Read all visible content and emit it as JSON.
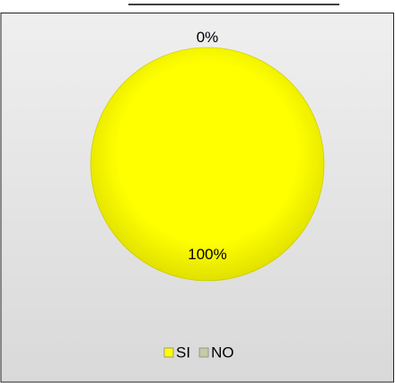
{
  "chart_data": {
    "type": "pie",
    "categories": [
      "SI",
      "NO"
    ],
    "values": [
      100,
      0
    ],
    "value_labels": [
      "100%",
      "0%"
    ],
    "colors": [
      "#ffff00",
      "#c4cca4"
    ],
    "legend": "bottom"
  }
}
